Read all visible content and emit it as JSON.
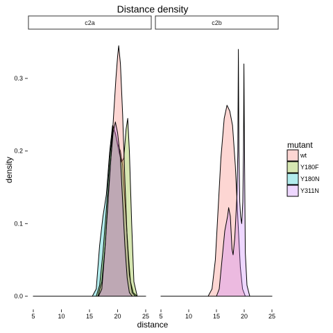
{
  "chart_data": {
    "type": "area",
    "title": "Distance density",
    "xlabel": "distance",
    "ylabel": "density",
    "xlim": [
      5,
      25
    ],
    "ylim": [
      0,
      0.35
    ],
    "x_ticks": [
      5,
      10,
      15,
      20,
      25
    ],
    "y_ticks": [
      0.0,
      0.1,
      0.2,
      0.3
    ],
    "y_tick_labels": [
      "0.0",
      "0.1",
      "0.2",
      "0.3"
    ],
    "grid": false,
    "legend_title": "mutant",
    "legend_position": "right",
    "series": [
      {
        "name": "wt",
        "color": "#F8766D"
      },
      {
        "name": "Y180F",
        "color": "#7CAE00"
      },
      {
        "name": "Y180N",
        "color": "#00BFC4"
      },
      {
        "name": "Y311N",
        "color": "#C77CFF"
      }
    ],
    "panels": [
      {
        "label": "c2a",
        "curves": [
          {
            "series": "Y180N",
            "points": [
              [
                5,
                0
              ],
              [
                15.5,
                0
              ],
              [
                16.2,
                0.01
              ],
              [
                16.8,
                0.07
              ],
              [
                17.4,
                0.11
              ],
              [
                18.0,
                0.14
              ],
              [
                18.6,
                0.2
              ],
              [
                19.1,
                0.235
              ],
              [
                19.6,
                0.225
              ],
              [
                20.0,
                0.21
              ],
              [
                20.5,
                0.2
              ],
              [
                20.9,
                0.18
              ],
              [
                21.4,
                0.12
              ],
              [
                21.9,
                0.06
              ],
              [
                22.3,
                0.02
              ],
              [
                22.8,
                0.005
              ],
              [
                23.5,
                0
              ],
              [
                25,
                0
              ]
            ]
          },
          {
            "series": "Y180F",
            "points": [
              [
                5,
                0
              ],
              [
                16.2,
                0
              ],
              [
                16.8,
                0.015
              ],
              [
                17.4,
                0.06
              ],
              [
                18.0,
                0.12
              ],
              [
                18.6,
                0.19
              ],
              [
                19.2,
                0.235
              ],
              [
                19.7,
                0.22
              ],
              [
                20.2,
                0.2
              ],
              [
                20.7,
                0.185
              ],
              [
                21.1,
                0.19
              ],
              [
                21.5,
                0.23
              ],
              [
                21.8,
                0.245
              ],
              [
                22.1,
                0.2
              ],
              [
                22.5,
                0.1
              ],
              [
                22.9,
                0.02
              ],
              [
                23.5,
                0
              ],
              [
                25,
                0
              ]
            ]
          },
          {
            "series": "wt",
            "points": [
              [
                5,
                0
              ],
              [
                16.5,
                0
              ],
              [
                17.2,
                0.02
              ],
              [
                17.8,
                0.07
              ],
              [
                18.4,
                0.14
              ],
              [
                18.9,
                0.2
              ],
              [
                19.3,
                0.25
              ],
              [
                19.7,
                0.3
              ],
              [
                20.0,
                0.33
              ],
              [
                20.2,
                0.345
              ],
              [
                20.5,
                0.32
              ],
              [
                20.9,
                0.25
              ],
              [
                21.3,
                0.16
              ],
              [
                21.7,
                0.08
              ],
              [
                22.1,
                0.03
              ],
              [
                22.6,
                0.005
              ],
              [
                23.2,
                0
              ],
              [
                25,
                0
              ]
            ]
          },
          {
            "series": "Y311N",
            "points": [
              [
                5,
                0
              ],
              [
                16.6,
                0
              ],
              [
                17.2,
                0.01
              ],
              [
                17.7,
                0.06
              ],
              [
                18.2,
                0.12
              ],
              [
                18.7,
                0.18
              ],
              [
                19.2,
                0.225
              ],
              [
                19.6,
                0.24
              ],
              [
                20.0,
                0.225
              ],
              [
                20.5,
                0.19
              ],
              [
                20.9,
                0.13
              ],
              [
                21.3,
                0.07
              ],
              [
                21.7,
                0.025
              ],
              [
                22.1,
                0.005
              ],
              [
                22.6,
                0
              ],
              [
                25,
                0
              ]
            ]
          }
        ]
      },
      {
        "label": "c2b",
        "curves": [
          {
            "series": "wt",
            "points": [
              [
                5,
                0
              ],
              [
                13.5,
                0
              ],
              [
                14.2,
                0.01
              ],
              [
                14.8,
                0.05
              ],
              [
                15.3,
                0.12
              ],
              [
                15.8,
                0.19
              ],
              [
                16.4,
                0.245
              ],
              [
                16.9,
                0.263
              ],
              [
                17.4,
                0.255
              ],
              [
                17.9,
                0.235
              ],
              [
                18.4,
                0.18
              ],
              [
                18.9,
                0.1
              ],
              [
                19.3,
                0.04
              ],
              [
                19.7,
                0.01
              ],
              [
                20.2,
                0
              ],
              [
                25,
                0
              ]
            ]
          },
          {
            "series": "Y311N",
            "points": [
              [
                5,
                0
              ],
              [
                15.0,
                0
              ],
              [
                15.5,
                0.01
              ],
              [
                16.0,
                0.05
              ],
              [
                16.5,
                0.09
              ],
              [
                17.0,
                0.11
              ],
              [
                17.2,
                0.122
              ],
              [
                17.5,
                0.11
              ],
              [
                17.8,
                0.065
              ],
              [
                18.0,
                0.057
              ],
              [
                18.3,
                0.08
              ],
              [
                18.5,
                0.11
              ],
              [
                18.7,
                0.14
              ],
              [
                18.85,
                0.2
              ],
              [
                18.95,
                0.34
              ],
              [
                19.05,
                0.2
              ],
              [
                19.2,
                0.13
              ],
              [
                19.35,
                0.11
              ],
              [
                19.55,
                0.1
              ],
              [
                19.75,
                0.13
              ],
              [
                19.88,
                0.2
              ],
              [
                19.95,
                0.32
              ],
              [
                20.05,
                0.2
              ],
              [
                20.2,
                0.06
              ],
              [
                20.5,
                0.015
              ],
              [
                21.0,
                0
              ],
              [
                25,
                0
              ]
            ]
          }
        ]
      }
    ]
  }
}
